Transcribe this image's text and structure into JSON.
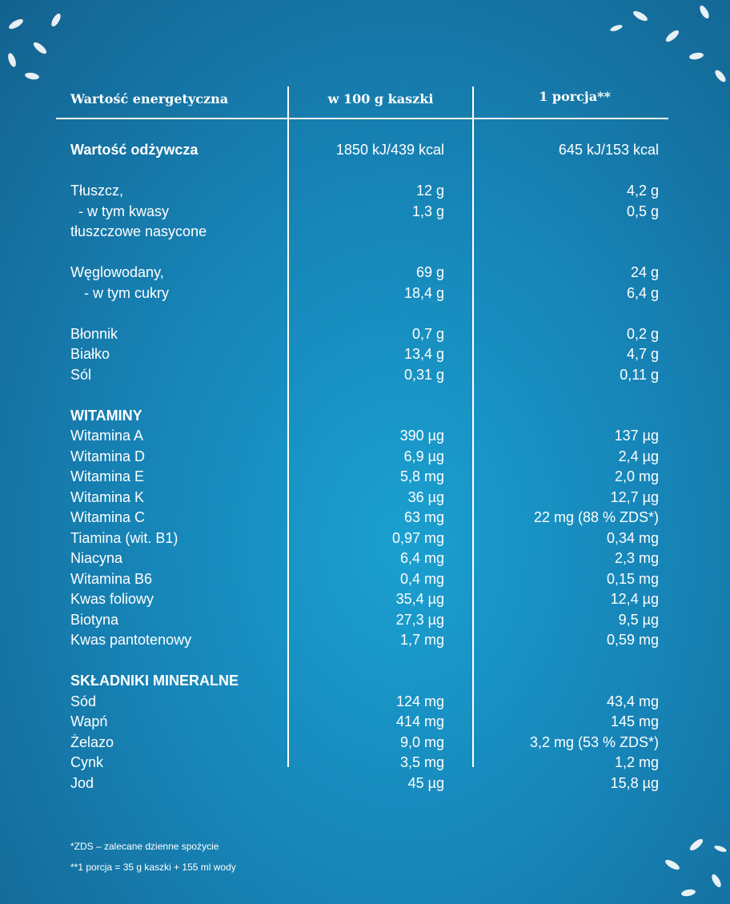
{
  "header": {
    "col1": "Wartość energetyczna",
    "col2": "w 100 g kaszki",
    "col3": "1 porcja**"
  },
  "groups": [
    {
      "rows": [
        {
          "label": "Wartość odżywcza",
          "bold": true,
          "per100": "1850 kJ/439 kcal",
          "portion": "645 kJ/153 kcal"
        }
      ]
    },
    {
      "rows": [
        {
          "label": "Tłuszcz,",
          "per100": "12 g",
          "portion": "4,2 g"
        },
        {
          "label": "- w tym kwasy",
          "indent": true,
          "per100": "1,3 g",
          "portion": "0,5 g"
        },
        {
          "label": "tłuszczowe nasycone"
        }
      ]
    },
    {
      "rows": [
        {
          "label": "Węglowodany,",
          "per100": "69 g",
          "portion": "24 g"
        },
        {
          "label": "- w tym cukry",
          "indent": true,
          "per100": "18,4 g",
          "portion": "6,4 g"
        }
      ]
    },
    {
      "rows": [
        {
          "label": "Błonnik",
          "per100": "0,7 g",
          "portion": "0,2 g"
        },
        {
          "label": "Białko",
          "per100": "13,4 g",
          "portion": "4,7 g"
        },
        {
          "label": "Sól",
          "per100": "0,31 g",
          "portion": "0,11 g"
        }
      ]
    },
    {
      "rows": [
        {
          "label": "WITAMINY",
          "bold": true
        },
        {
          "label": "Witamina A",
          "per100": "390 µg",
          "portion": "137 µg"
        },
        {
          "label": "Witamina D",
          "per100": "6,9 µg",
          "portion": "2,4 µg"
        },
        {
          "label": "Witamina E",
          "per100": "5,8 mg",
          "portion": "2,0 mg"
        },
        {
          "label": "Witamina K",
          "per100": "36 µg",
          "portion": "12,7 µg"
        },
        {
          "label": "Witamina C",
          "per100": "63 mg",
          "portion": "22 mg (88 % ZDS*)"
        },
        {
          "label": "Tiamina (wit. B1)",
          "per100": "0,97 mg",
          "portion": "0,34 mg"
        },
        {
          "label": "Niacyna",
          "per100": "6,4 mg",
          "portion": "2,3 mg"
        },
        {
          "label": "Witamina B6",
          "per100": "0,4 mg",
          "portion": "0,15 mg"
        },
        {
          "label": "Kwas foliowy",
          "per100": "35,4 µg",
          "portion": "12,4 µg"
        },
        {
          "label": "Biotyna",
          "per100": "27,3 µg",
          "portion": "9,5 µg"
        },
        {
          "label": "Kwas pantotenowy",
          "per100": "1,7 mg",
          "portion": "0,59 mg"
        }
      ]
    },
    {
      "rows": [
        {
          "label": "SKŁADNIKI MINERALNE",
          "bold": true
        },
        {
          "label": "Sód",
          "per100": "124 mg",
          "portion": "43,4 mg"
        },
        {
          "label": "Wapń",
          "per100": "414 mg",
          "portion": "145 mg"
        },
        {
          "label": "Żelazo",
          "per100": "9,0 mg",
          "portion": "3,2 mg (53 % ZDS*)"
        },
        {
          "label": "Cynk",
          "per100": "3,5 mg",
          "portion": "1,2 mg"
        },
        {
          "label": "Jod",
          "per100": "45 µg",
          "portion": "15,8 µg"
        }
      ]
    }
  ],
  "footnotes": [
    "*ZDS – zalecane dzienne spożycie",
    "**1 porcja = 35 g kaszki + 155 ml wody"
  ]
}
